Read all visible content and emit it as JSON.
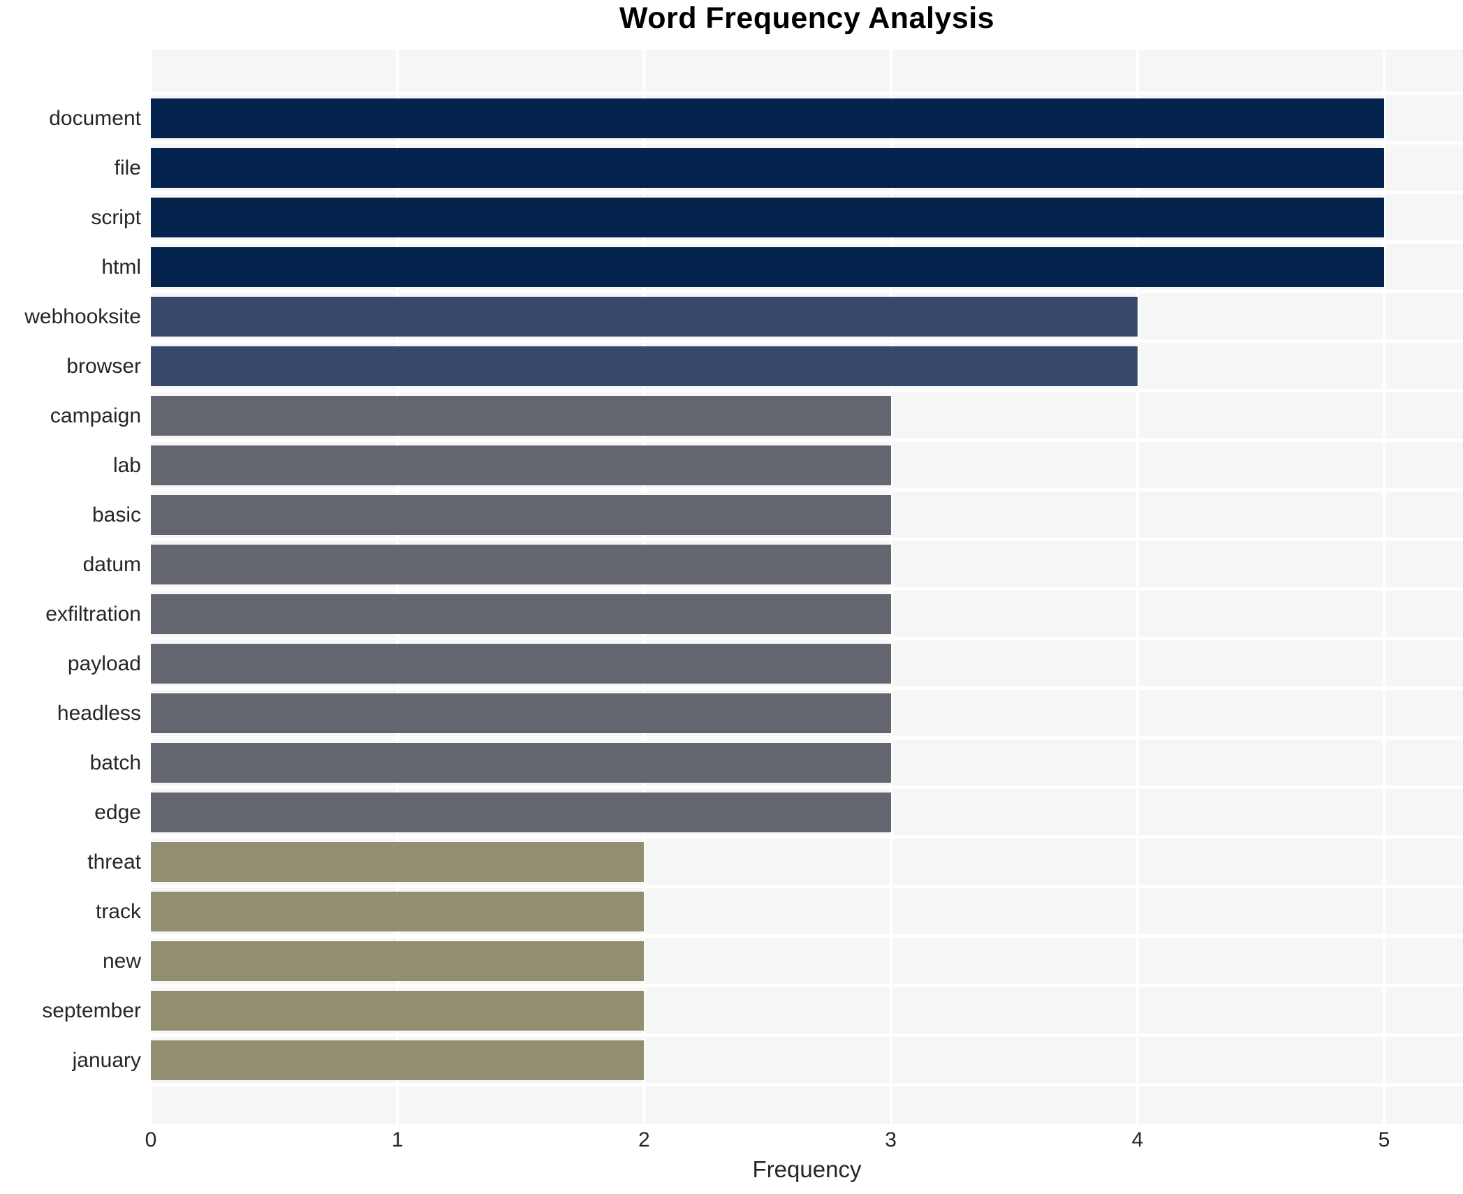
{
  "title": "Word Frequency Analysis",
  "x_axis": {
    "label": "Frequency",
    "ticks": [
      0,
      1,
      2,
      3,
      4,
      5
    ]
  },
  "colors": {
    "freq_5_bar": "#04234d",
    "freq_4_bar": "#38486c",
    "freq_3_bar": "#63666e",
    "freq_2_bar": "#928e72",
    "plot_background": "#f6f6f7",
    "gridline": "#ffffff",
    "text": "#262626",
    "title_text": "#000000"
  },
  "chart_data": {
    "type": "bar",
    "orientation": "horizontal",
    "title": "Word Frequency Analysis",
    "xlabel": "Frequency",
    "ylabel": "",
    "xlim": [
      0,
      5.32
    ],
    "grid": true,
    "legend": false,
    "categories": [
      "document",
      "file",
      "script",
      "html",
      "webhooksite",
      "browser",
      "campaign",
      "lab",
      "basic",
      "datum",
      "exfiltration",
      "payload",
      "headless",
      "batch",
      "edge",
      "threat",
      "track",
      "new",
      "september",
      "january"
    ],
    "values": [
      5,
      5,
      5,
      5,
      4,
      4,
      3,
      3,
      3,
      3,
      3,
      3,
      3,
      3,
      3,
      2,
      2,
      2,
      2,
      2
    ],
    "bar_colors": [
      "#04234d",
      "#04234d",
      "#04234d",
      "#04234d",
      "#38486c",
      "#38486c",
      "#63666e",
      "#63666e",
      "#63666e",
      "#63666e",
      "#63666e",
      "#63666e",
      "#63666e",
      "#63666e",
      "#63666e",
      "#928e72",
      "#928e72",
      "#928e72",
      "#928e72",
      "#928e72"
    ]
  }
}
